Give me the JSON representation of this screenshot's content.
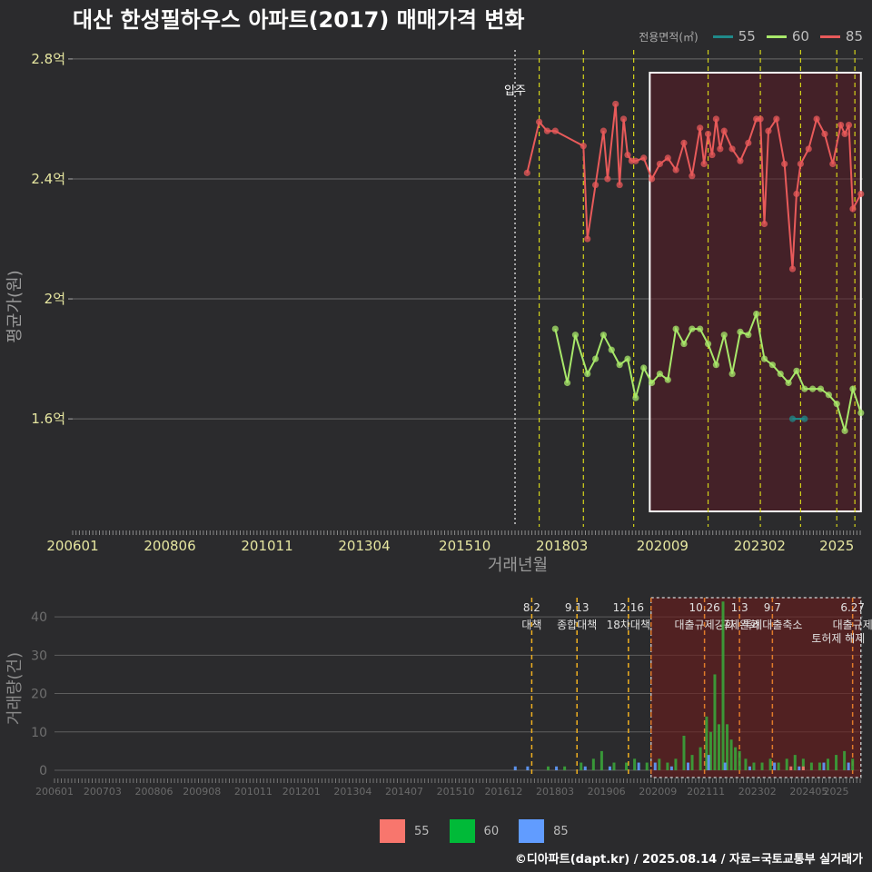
{
  "title": "대산 한성필하우스 아파트(2017) 매매가격 변화",
  "footer": "©디아파트(dapt.kr) / 2025.08.14 / 자료=국토교통부 실거래가",
  "legend_top": {
    "label": "전용면적(㎡)",
    "items": [
      {
        "name": "55",
        "color": "#1f8a8a"
      },
      {
        "name": "60",
        "color": "#a8e86a"
      },
      {
        "name": "85",
        "color": "#e85a5a"
      }
    ]
  },
  "legend_bottom": {
    "items": [
      {
        "name": "55",
        "color": "#f8766d"
      },
      {
        "name": "60",
        "color": "#00ba38"
      },
      {
        "name": "85",
        "color": "#619cff"
      }
    ]
  },
  "chart_data": [
    {
      "type": "line",
      "ylabel": "평균가(원)",
      "xlabel": "거래년월",
      "ylim": [
        1.24,
        2.83
      ],
      "yticks": [
        {
          "v": 1.6,
          "label": "1.6억"
        },
        {
          "v": 2.0,
          "label": "2억"
        },
        {
          "v": 2.4,
          "label": "2.4억"
        },
        {
          "v": 2.8,
          "label": "2.8억"
        }
      ],
      "xticks": [
        "200601",
        "200806",
        "201011",
        "201304",
        "201510",
        "201803",
        "202009",
        "202302",
        "2025"
      ],
      "x_start": "2006-01",
      "x_end": "2025-08",
      "movein_label": "입주",
      "movein_x": 2017.0,
      "policy_lines": [
        2017.6,
        2018.7,
        2019.95,
        2021.8,
        2023.1,
        2024.1,
        2025.0,
        2025.45
      ],
      "highlight_range": [
        2020.35,
        2025.6
      ],
      "series": [
        {
          "name": "85",
          "color": "#e85a5a",
          "x": [
            2017.3,
            2017.6,
            2017.8,
            2018.0,
            2018.7,
            2018.8,
            2019.0,
            2019.2,
            2019.3,
            2019.5,
            2019.6,
            2019.7,
            2019.8,
            2019.9,
            2020.0,
            2020.2,
            2020.4,
            2020.6,
            2020.8,
            2021.0,
            2021.2,
            2021.4,
            2021.6,
            2021.7,
            2021.8,
            2021.9,
            2022.0,
            2022.1,
            2022.2,
            2022.4,
            2022.6,
            2022.8,
            2023.0,
            2023.1,
            2023.2,
            2023.3,
            2023.5,
            2023.7,
            2023.9,
            2024.0,
            2024.1,
            2024.3,
            2024.5,
            2024.7,
            2024.9,
            2025.1,
            2025.2,
            2025.3,
            2025.4,
            2025.6
          ],
          "y": [
            2.42,
            2.59,
            2.56,
            2.56,
            2.51,
            2.2,
            2.38,
            2.56,
            2.4,
            2.65,
            2.38,
            2.6,
            2.48,
            2.46,
            2.46,
            2.47,
            2.4,
            2.45,
            2.47,
            2.43,
            2.52,
            2.41,
            2.57,
            2.45,
            2.55,
            2.48,
            2.6,
            2.5,
            2.56,
            2.5,
            2.46,
            2.52,
            2.6,
            2.6,
            2.25,
            2.56,
            2.6,
            2.45,
            2.1,
            2.35,
            2.45,
            2.5,
            2.6,
            2.55,
            2.45,
            2.58,
            2.55,
            2.58,
            2.3,
            2.35
          ]
        },
        {
          "name": "60",
          "color": "#a8e86a",
          "x": [
            2018.0,
            2018.3,
            2018.5,
            2018.8,
            2019.0,
            2019.2,
            2019.4,
            2019.6,
            2019.8,
            2020.0,
            2020.2,
            2020.4,
            2020.6,
            2020.8,
            2021.0,
            2021.2,
            2021.4,
            2021.6,
            2021.8,
            2022.0,
            2022.2,
            2022.4,
            2022.6,
            2022.8,
            2023.0,
            2023.2,
            2023.4,
            2023.6,
            2023.8,
            2024.0,
            2024.2,
            2024.4,
            2024.6,
            2024.8,
            2025.0,
            2025.2,
            2025.4,
            2025.6
          ],
          "y": [
            1.9,
            1.72,
            1.88,
            1.75,
            1.8,
            1.88,
            1.83,
            1.78,
            1.8,
            1.67,
            1.77,
            1.72,
            1.75,
            1.73,
            1.9,
            1.85,
            1.9,
            1.9,
            1.85,
            1.78,
            1.88,
            1.75,
            1.89,
            1.88,
            1.95,
            1.8,
            1.78,
            1.75,
            1.72,
            1.76,
            1.7,
            1.7,
            1.7,
            1.68,
            1.65,
            1.56,
            1.7,
            1.62
          ]
        },
        {
          "name": "55",
          "color": "#1f8a8a",
          "x": [
            2023.9,
            2024.2
          ],
          "y": [
            1.6,
            1.6
          ]
        }
      ]
    },
    {
      "type": "bar",
      "ylabel": "거래량(건)",
      "ylim": [
        0,
        45
      ],
      "yticks": [
        0,
        10,
        20,
        30,
        40
      ],
      "xticks": [
        "200601",
        "200703",
        "200806",
        "200908",
        "201011",
        "201201",
        "201304",
        "201407",
        "201510",
        "201612",
        "201803",
        "201906",
        "202009",
        "202111",
        "202302",
        "202405",
        "2025"
      ],
      "events": [
        {
          "x": 2017.6,
          "label": "8.2 대책"
        },
        {
          "x": 2018.7,
          "label": "9.13 종합대책"
        },
        {
          "x": 2019.95,
          "label": "12.16 18차대책"
        },
        {
          "x": 2020.5,
          "label": ""
        },
        {
          "x": 2021.8,
          "label": "10.26 대출규제강화"
        },
        {
          "x": 2022.65,
          "label": "1.3 규제완화"
        },
        {
          "x": 2023.45,
          "label": "9.7 특례대출축소"
        },
        {
          "x": 2025.4,
          "label": "6.27 대출규제"
        }
      ],
      "event_extra_label": "토허제 해제",
      "highlight_range": [
        2020.5,
        2025.6
      ],
      "series": [
        {
          "name": "60",
          "color": "#3aa33a",
          "x": [
            2018.0,
            2018.4,
            2018.8,
            2019.1,
            2019.3,
            2019.6,
            2019.9,
            2020.1,
            2020.4,
            2020.7,
            2020.9,
            2021.1,
            2021.3,
            2021.5,
            2021.7,
            2021.85,
            2021.95,
            2022.05,
            2022.15,
            2022.25,
            2022.35,
            2022.45,
            2022.55,
            2022.65,
            2022.8,
            2023.0,
            2023.2,
            2023.4,
            2023.6,
            2023.8,
            2024.0,
            2024.2,
            2024.4,
            2024.6,
            2024.8,
            2025.0,
            2025.2,
            2025.4
          ],
          "values": [
            1,
            1,
            2,
            3,
            5,
            2,
            2,
            3,
            2,
            3,
            2,
            3,
            9,
            4,
            6,
            14,
            10,
            25,
            12,
            44,
            12,
            8,
            6,
            5,
            3,
            2,
            2,
            3,
            2,
            3,
            4,
            3,
            2,
            2,
            3,
            4,
            5,
            3
          ]
        },
        {
          "name": "85",
          "color": "#619cff",
          "x": [
            2017.2,
            2017.5,
            2018.2,
            2018.9,
            2019.5,
            2020.2,
            2020.6,
            2021.0,
            2021.4,
            2021.9,
            2022.3,
            2022.9,
            2023.5,
            2024.1,
            2024.7,
            2025.3
          ],
          "values": [
            1,
            1,
            1,
            1,
            1,
            2,
            2,
            1,
            2,
            4,
            2,
            1,
            2,
            1,
            2,
            2
          ]
        },
        {
          "name": "55",
          "color": "#f8766d",
          "x": [
            2023.9,
            2024.2
          ],
          "values": [
            1,
            1
          ]
        }
      ]
    }
  ]
}
